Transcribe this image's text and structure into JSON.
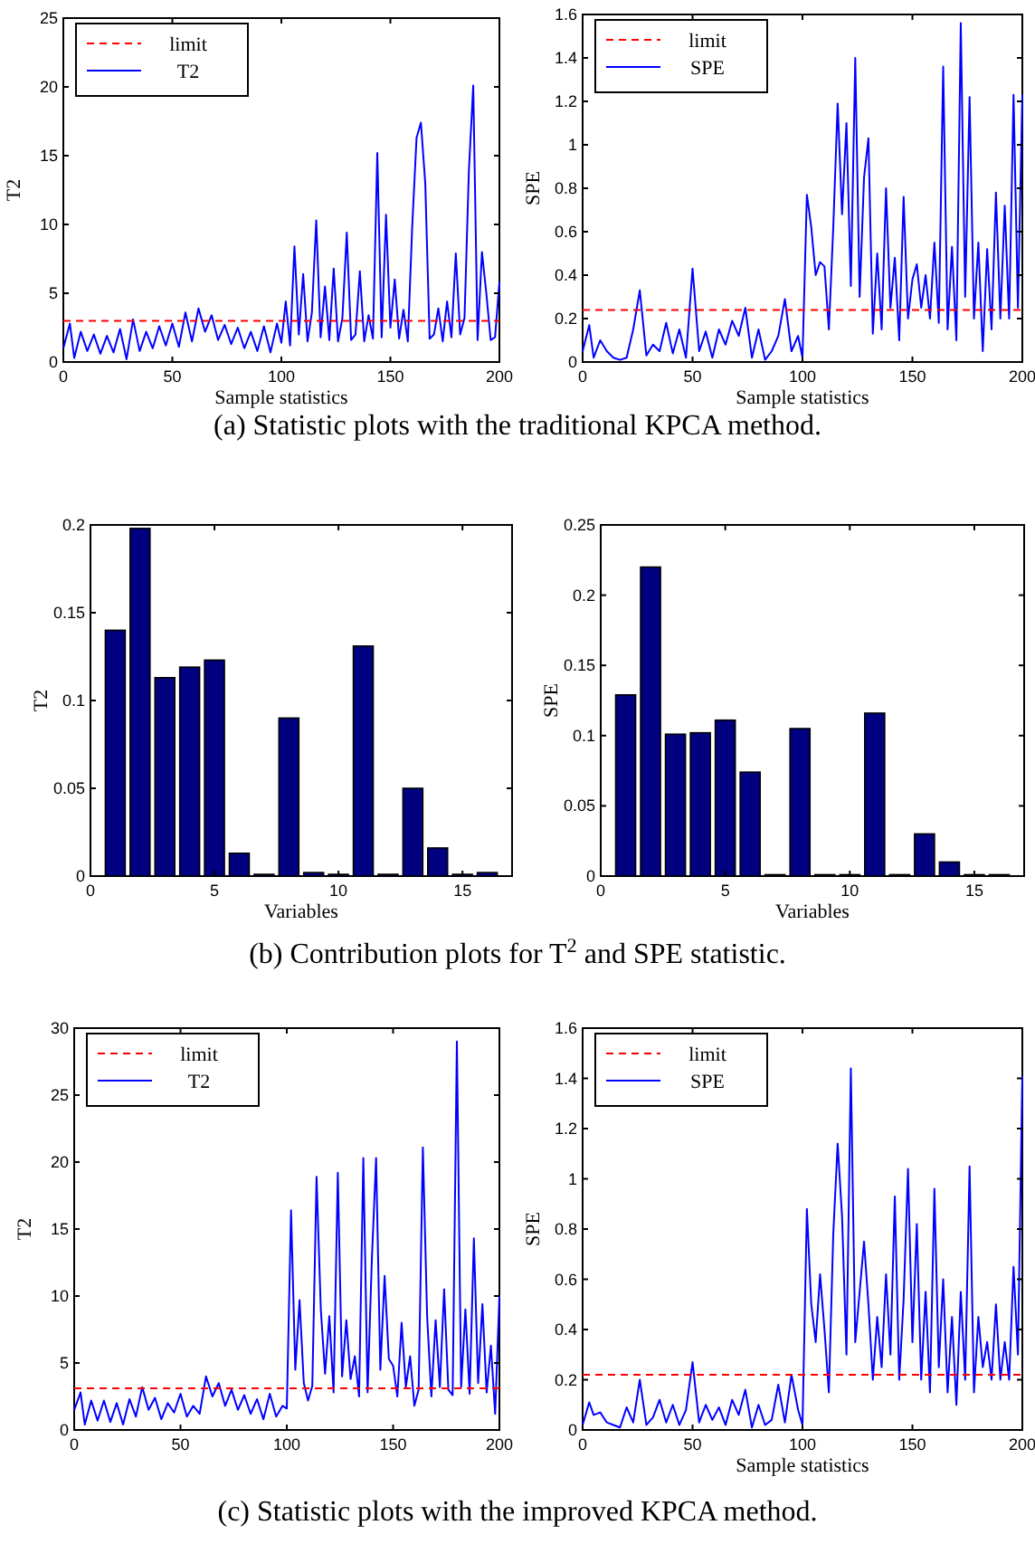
{
  "chart_data": [
    {
      "type": "line",
      "ylabel": "T2",
      "xlabel": "Sample statistics",
      "xlim": [
        0,
        200
      ],
      "xticks": [
        0,
        50,
        100,
        150,
        200
      ],
      "ylim": [
        0,
        25
      ],
      "yticks": [
        0,
        5,
        10,
        15,
        20,
        25
      ],
      "legend": "top left",
      "ref_lines": [
        {
          "axis": "y",
          "value": 3,
          "label": "limit",
          "color": "#ff0000",
          "line_style": "dashed"
        }
      ],
      "annotations": [
        "(a) Statistic plots with the traditional KPCA method."
      ],
      "x": [
        0,
        3,
        5,
        8,
        11,
        14,
        17,
        20,
        23,
        26,
        29,
        32,
        35,
        38,
        41,
        44,
        47,
        50,
        53,
        56,
        59,
        62,
        65,
        68,
        71,
        74,
        77,
        80,
        83,
        86,
        89,
        92,
        95,
        98,
        100,
        102,
        104,
        106,
        108,
        110,
        112,
        114,
        116,
        118,
        120,
        122,
        124,
        126,
        128,
        130,
        132,
        134,
        136,
        138,
        140,
        142,
        144,
        146,
        148,
        150,
        152,
        154,
        156,
        158,
        160,
        162,
        164,
        166,
        168,
        170,
        172,
        174,
        176,
        178,
        180,
        182,
        184,
        186,
        188,
        190,
        192,
        194,
        196,
        198,
        200
      ],
      "series": [
        {
          "name": "T2",
          "color": "#0000ff",
          "values": [
            1,
            2.8,
            0.3,
            2.2,
            0.8,
            2.0,
            0.6,
            1.9,
            0.7,
            2.4,
            0.2,
            3.1,
            0.8,
            2.2,
            1.0,
            2.6,
            1.2,
            2.8,
            1.1,
            3.6,
            1.5,
            3.9,
            2.2,
            3.4,
            1.6,
            2.7,
            1.3,
            2.5,
            1.0,
            2.2,
            0.8,
            2.6,
            0.7,
            2.8,
            1.4,
            4.4,
            1.2,
            8.4,
            2.0,
            6.4,
            1.5,
            3.6,
            10.3,
            1.8,
            5.5,
            1.6,
            6.8,
            1.5,
            3.2,
            9.4,
            1.6,
            2.0,
            6.6,
            1.5,
            3.4,
            1.7,
            15.2,
            1.8,
            10.7,
            2.5,
            6.0,
            1.7,
            3.8,
            1.5,
            9.8,
            16.3,
            17.4,
            13.0,
            1.7,
            2.0,
            3.9,
            1.5,
            4.4,
            1.8,
            7.9,
            2.0,
            3.2,
            13.9,
            20.1,
            1.6,
            8.0,
            5.0,
            1.6,
            1.8,
            5.8
          ]
        }
      ]
    },
    {
      "type": "line",
      "ylabel": "SPE",
      "xlabel": "Sample statistics",
      "xlim": [
        0,
        200
      ],
      "xticks": [
        0,
        50,
        100,
        150,
        200
      ],
      "ylim": [
        0,
        1.6
      ],
      "yticks": [
        0,
        0.2,
        0.4,
        0.6,
        0.8,
        1,
        1.2,
        1.4,
        1.6
      ],
      "legend": "top left",
      "ref_lines": [
        {
          "axis": "y",
          "value": 0.24,
          "label": "limit",
          "color": "#ff0000",
          "line_style": "dashed"
        }
      ],
      "x": [
        0,
        3,
        5,
        8,
        11,
        14,
        17,
        20,
        23,
        26,
        29,
        32,
        35,
        38,
        41,
        44,
        47,
        50,
        53,
        56,
        59,
        62,
        65,
        68,
        71,
        74,
        77,
        80,
        83,
        86,
        89,
        92,
        95,
        98,
        100,
        102,
        104,
        106,
        108,
        110,
        112,
        114,
        116,
        118,
        120,
        122,
        124,
        126,
        128,
        130,
        132,
        134,
        136,
        138,
        140,
        142,
        144,
        146,
        148,
        150,
        152,
        154,
        156,
        158,
        160,
        162,
        164,
        166,
        168,
        170,
        172,
        174,
        176,
        178,
        180,
        182,
        184,
        186,
        188,
        190,
        192,
        194,
        196,
        198,
        200
      ],
      "series": [
        {
          "name": "SPE",
          "color": "#0000ff",
          "values": [
            0.05,
            0.17,
            0.02,
            0.1,
            0.05,
            0.02,
            0.01,
            0.02,
            0.15,
            0.33,
            0.03,
            0.08,
            0.05,
            0.18,
            0.04,
            0.15,
            0.02,
            0.43,
            0.05,
            0.14,
            0.02,
            0.15,
            0.08,
            0.19,
            0.12,
            0.25,
            0.02,
            0.15,
            0.01,
            0.05,
            0.12,
            0.29,
            0.05,
            0.12,
            0.02,
            0.77,
            0.62,
            0.4,
            0.46,
            0.44,
            0.15,
            0.62,
            1.19,
            0.68,
            1.1,
            0.35,
            1.4,
            0.3,
            0.85,
            1.03,
            0.13,
            0.5,
            0.15,
            0.8,
            0.25,
            0.48,
            0.1,
            0.76,
            0.2,
            0.38,
            0.45,
            0.25,
            0.4,
            0.2,
            0.55,
            0.18,
            1.36,
            0.15,
            0.53,
            0.1,
            1.56,
            0.3,
            1.22,
            0.2,
            0.55,
            0.05,
            0.52,
            0.15,
            0.78,
            0.2,
            0.72,
            0.2,
            1.23,
            0.25,
            1.23
          ]
        }
      ]
    },
    {
      "type": "bar",
      "ylabel": "T2",
      "xlabel": "Variables",
      "xlim": [
        0,
        17
      ],
      "xticks": [
        0,
        5,
        10,
        15
      ],
      "ylim": [
        0,
        0.2
      ],
      "yticks": [
        0,
        0.05,
        0.1,
        0.15,
        0.2
      ],
      "annotations": [
        "(b) Contribution plots for T$^{2}$ and SPE statistic."
      ],
      "x": [
        1,
        2,
        3,
        4,
        5,
        6,
        7,
        8,
        9,
        10,
        11,
        12,
        13,
        14,
        15,
        16
      ],
      "color": "#000080",
      "values": [
        0.14,
        0.198,
        0.113,
        0.119,
        0.123,
        0.013,
        0.001,
        0.09,
        0.002,
        0.001,
        0.131,
        0.001,
        0.05,
        0.016,
        0.001,
        0.002
      ]
    },
    {
      "type": "bar",
      "ylabel": "SPE",
      "xlabel": "Variables",
      "xlim": [
        0,
        17
      ],
      "xticks": [
        0,
        5,
        10,
        15
      ],
      "ylim": [
        0,
        0.25
      ],
      "yticks": [
        0,
        0.05,
        0.1,
        0.15,
        0.2,
        0.25
      ],
      "x": [
        1,
        2,
        3,
        4,
        5,
        6,
        7,
        8,
        9,
        10,
        11,
        12,
        13,
        14,
        15,
        16
      ],
      "color": "#000080",
      "values": [
        0.129,
        0.22,
        0.101,
        0.102,
        0.111,
        0.074,
        0.001,
        0.105,
        0.001,
        0.001,
        0.116,
        0.001,
        0.03,
        0.01,
        0.001,
        0.001
      ]
    },
    {
      "type": "line",
      "ylabel": "T2",
      "xlim": [
        0,
        200
      ],
      "xticks": [
        0,
        50,
        100,
        150,
        200
      ],
      "ylim": [
        0,
        30
      ],
      "yticks": [
        0,
        5,
        10,
        15,
        20,
        25,
        30
      ],
      "legend": "top left",
      "ref_lines": [
        {
          "axis": "y",
          "value": 3.1,
          "label": "limit",
          "color": "#ff0000",
          "line_style": "dashed"
        }
      ],
      "annotations": [
        "(c) Statistic plots with the improved KPCA method."
      ],
      "x": [
        0,
        3,
        5,
        8,
        11,
        14,
        17,
        20,
        23,
        26,
        29,
        32,
        35,
        38,
        41,
        44,
        47,
        50,
        53,
        56,
        59,
        62,
        65,
        68,
        71,
        74,
        77,
        80,
        83,
        86,
        89,
        92,
        95,
        98,
        100,
        102,
        104,
        106,
        108,
        110,
        112,
        114,
        116,
        118,
        120,
        122,
        124,
        126,
        128,
        130,
        132,
        134,
        136,
        138,
        140,
        142,
        144,
        146,
        148,
        150,
        152,
        154,
        156,
        158,
        160,
        162,
        164,
        166,
        168,
        170,
        172,
        174,
        176,
        178,
        180,
        182,
        184,
        186,
        188,
        190,
        192,
        194,
        196,
        198,
        200
      ],
      "series": [
        {
          "name": "T2",
          "color": "#0000ff",
          "values": [
            1.5,
            2.8,
            0.4,
            2.2,
            0.7,
            2.2,
            0.6,
            2.0,
            0.4,
            2.3,
            1.0,
            3.2,
            1.5,
            2.4,
            0.8,
            2.0,
            1.3,
            2.7,
            1.0,
            1.8,
            1.2,
            4.0,
            2.5,
            3.5,
            1.8,
            3.0,
            1.5,
            2.6,
            1.2,
            2.3,
            0.8,
            2.7,
            1.0,
            1.8,
            1.6,
            16.4,
            4.5,
            9.7,
            3.5,
            2.2,
            3.3,
            18.9,
            9.0,
            4.2,
            8.5,
            2.8,
            19.2,
            4.0,
            8.2,
            3.8,
            5.5,
            2.5,
            20.3,
            2.8,
            12.7,
            20.3,
            4.5,
            11.5,
            5.3,
            4.8,
            2.5,
            8.0,
            3.2,
            5.5,
            1.8,
            3.0,
            21.1,
            8.5,
            2.5,
            8.2,
            3.2,
            10.5,
            3.0,
            2.6,
            29.0,
            3.2,
            9.0,
            2.7,
            14.3,
            3.5,
            9.4,
            2.8,
            6.3,
            1.2,
            10.0
          ]
        }
      ]
    },
    {
      "type": "line",
      "ylabel": "SPE",
      "xlabel": "Sample statistics",
      "xlim": [
        0,
        200
      ],
      "xticks": [
        0,
        50,
        100,
        150,
        200
      ],
      "ylim": [
        0,
        1.6
      ],
      "yticks": [
        0,
        0.2,
        0.4,
        0.6,
        0.8,
        1,
        1.2,
        1.4,
        1.6
      ],
      "legend": "top left",
      "ref_lines": [
        {
          "axis": "y",
          "value": 0.22,
          "label": "limit",
          "color": "#ff0000",
          "line_style": "dashed"
        }
      ],
      "x": [
        0,
        3,
        5,
        8,
        11,
        14,
        17,
        20,
        23,
        26,
        29,
        32,
        35,
        38,
        41,
        44,
        47,
        50,
        53,
        56,
        59,
        62,
        65,
        68,
        71,
        74,
        77,
        80,
        83,
        86,
        89,
        92,
        95,
        98,
        100,
        102,
        104,
        106,
        108,
        110,
        112,
        114,
        116,
        118,
        120,
        122,
        124,
        126,
        128,
        130,
        132,
        134,
        136,
        138,
        140,
        142,
        144,
        146,
        148,
        150,
        152,
        154,
        156,
        158,
        160,
        162,
        164,
        166,
        168,
        170,
        172,
        174,
        176,
        178,
        180,
        182,
        184,
        186,
        188,
        190,
        192,
        194,
        196,
        198,
        200
      ],
      "series": [
        {
          "name": "SPE",
          "color": "#0000ff",
          "values": [
            0.02,
            0.11,
            0.06,
            0.07,
            0.03,
            0.02,
            0.01,
            0.09,
            0.03,
            0.2,
            0.02,
            0.05,
            0.12,
            0.03,
            0.1,
            0.02,
            0.08,
            0.27,
            0.03,
            0.1,
            0.04,
            0.09,
            0.02,
            0.12,
            0.06,
            0.16,
            0.01,
            0.1,
            0.02,
            0.04,
            0.18,
            0.03,
            0.22,
            0.08,
            0.02,
            0.88,
            0.5,
            0.35,
            0.62,
            0.4,
            0.15,
            0.78,
            1.14,
            0.85,
            0.3,
            1.44,
            0.35,
            0.55,
            0.75,
            0.5,
            0.2,
            0.45,
            0.25,
            0.62,
            0.3,
            0.93,
            0.2,
            0.52,
            1.04,
            0.35,
            0.82,
            0.2,
            0.55,
            0.15,
            0.96,
            0.25,
            0.6,
            0.15,
            0.45,
            0.1,
            0.55,
            0.2,
            1.05,
            0.15,
            0.45,
            0.25,
            0.35,
            0.2,
            0.5,
            0.2,
            0.35,
            0.2,
            0.65,
            0.3,
            1.41
          ]
        }
      ]
    }
  ]
}
